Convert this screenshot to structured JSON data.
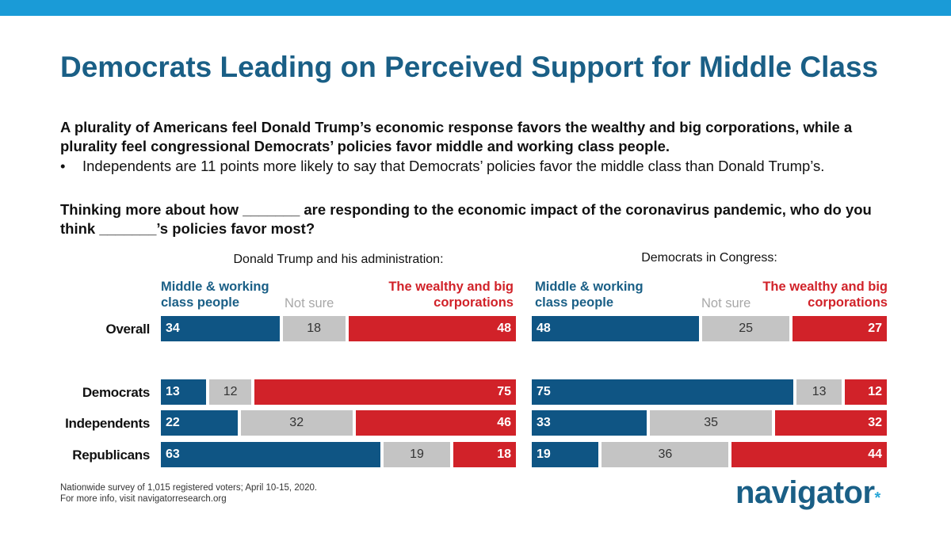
{
  "header": {
    "bar_color": "#1a9bd7"
  },
  "title": "Democrats Leading on Perceived Support for Middle Class",
  "subtitle": "A plurality of Americans feel Donald Trump’s economic response favors the wealthy and big corporations, while a plurality feel congressional Democrats’ policies favor middle and working class people.",
  "bullet": {
    "symbol": "•",
    "text": "Independents are 11 points more likely to say that Democrats’ policies favor the middle class than Donald Trump’s."
  },
  "question": "Thinking more about how _______ are responding to the economic impact of the coronavirus pandemic, who do you think _______’s policies favor most?",
  "colors": {
    "middle": "#0f5584",
    "not_sure": "#c4c4c4",
    "wealthy": "#d12229",
    "title": "#1a5f86"
  },
  "chart_data": [
    {
      "type": "bar",
      "stacked": true,
      "orientation": "horizontal",
      "title": "Donald Trump and his administration:",
      "legend": {
        "middle": "Middle & working class people",
        "not_sure": "Not sure",
        "wealthy": "The wealthy and big corporations"
      },
      "categories": [
        "Overall",
        "Democrats",
        "Independents",
        "Republicans"
      ],
      "series": [
        {
          "name": "Middle & working class people",
          "values": [
            34,
            13,
            22,
            63
          ]
        },
        {
          "name": "Not sure",
          "values": [
            18,
            12,
            32,
            19
          ]
        },
        {
          "name": "The wealthy and big corporations",
          "values": [
            48,
            75,
            46,
            18
          ]
        }
      ]
    },
    {
      "type": "bar",
      "stacked": true,
      "orientation": "horizontal",
      "title": "Democrats in Congress:",
      "legend": {
        "middle": "Middle & working class people",
        "not_sure": "Not sure",
        "wealthy": "The wealthy and big corporations"
      },
      "categories": [
        "Overall",
        "Democrats",
        "Independents",
        "Republicans"
      ],
      "series": [
        {
          "name": "Middle & working class people",
          "values": [
            48,
            75,
            33,
            19
          ]
        },
        {
          "name": "Not sure",
          "values": [
            25,
            13,
            35,
            36
          ]
        },
        {
          "name": "The wealthy and big corporations",
          "values": [
            27,
            12,
            32,
            44
          ]
        }
      ]
    }
  ],
  "footnote": {
    "line1": "Nationwide survey of 1,015 registered voters; April 10-15, 2020.",
    "line2": "For more info, visit navigatorresearch.org"
  },
  "logo": {
    "text": "navigator",
    "mark": "*"
  }
}
